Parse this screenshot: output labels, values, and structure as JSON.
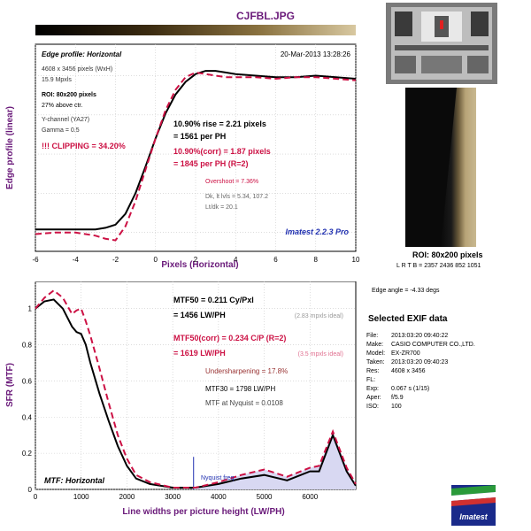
{
  "window": {
    "title": "CJFBL.JPG"
  },
  "top_panel": {
    "header_left": "Edge profile: Horizontal",
    "header_right": "20-Mar-2013 13:28:26",
    "info": [
      "4608 x 3456 pixels (WxH)",
      "15.9 Mpxls"
    ],
    "roi_line": "ROI: 80x200 pixels",
    "roi_pos": "27% above ctr.",
    "channel": "Y-channel (YA27)",
    "gamma": "Gamma = 0.5",
    "clipping": "!!! CLIPPING =  34.20%",
    "rise_line1": "10.90% rise = 2.21 pixels",
    "rise_line2": "= 1561 per PH",
    "corr_line1": "10.90%(corr) = 1.87 pixels",
    "corr_line2": "= 1845 per PH  (R=2)",
    "overshoot": "Overshoot = 7.36%",
    "dk_lvls": "Dk, lt lvls = 5.34, 107.2",
    "lt_dk": "Lt/dk = 20.1",
    "brand": "Imatest 2.2.3 Pro"
  },
  "bottom_panel": {
    "mtf50_line1": "MTF50 = 0.211 Cy/Pxl",
    "mtf50_line2": "= 1456 LW/PH",
    "ideal1": "(2.83 mpxls ideal)",
    "corr_line1": "MTF50(corr) = 0.234 C/P  (R=2)",
    "corr_line2": "= 1619 LW/PH",
    "ideal2": "(3.5 mpxls ideal)",
    "undersharpening": "Undersharpening = 17.8%",
    "mtf30": "MTF30 = 1798 LW/PH",
    "nyquist_mtf": "MTF at Nyquist = 0.0108",
    "nyquist_label": "Nyquist freq.",
    "label_left": "MTF: Horizontal"
  },
  "side": {
    "roi_label": "ROI: 80x200 pixels",
    "lrtb": "L R  T B = 2357 2436  852 1051",
    "edge_angle": "Edge angle = -4.33 degs",
    "exif_title": "Selected EXIF data",
    "exif": [
      {
        "k": "File:",
        "v": "2013:03:20 09:40:22"
      },
      {
        "k": "Make:",
        "v": "CASIO COMPUTER CO.,LTD."
      },
      {
        "k": "Model:",
        "v": "EX-ZR700"
      },
      {
        "k": "Taken:",
        "v": "2013:03:20 09:40:23"
      },
      {
        "k": "Res:",
        "v": "4608 x 3456"
      },
      {
        "k": "FL:",
        "v": ""
      },
      {
        "k": "Exp:",
        "v": "0.067 s  (1/15)"
      },
      {
        "k": "Aper:",
        "v": "f/5.9"
      },
      {
        "k": "ISO:",
        "v": "100"
      }
    ],
    "logo": "Imatest"
  },
  "colors": {
    "accent": "#cc1144",
    "title": "#6a1a7a",
    "blue": "#2030b0"
  },
  "chart_data": [
    {
      "type": "line",
      "title": "Edge profile: Horizontal",
      "xlabel": "Pixels (Horizontal)",
      "ylabel": "Edge profile (linear)",
      "xlim": [
        -6,
        10
      ],
      "xticks": [
        -6,
        -4,
        -2,
        0,
        2,
        4,
        6,
        8,
        10
      ],
      "grid": true,
      "series": [
        {
          "x": [
            -6,
            -5,
            -4,
            -3,
            -2.5,
            -2,
            -1.5,
            -1,
            -0.5,
            0,
            0.5,
            1,
            1.5,
            2,
            2.5,
            3,
            3.5,
            4,
            5,
            6,
            7,
            8,
            9,
            10
          ],
          "y": [
            0.02,
            0.02,
            0.02,
            0.02,
            0.03,
            0.05,
            0.12,
            0.25,
            0.42,
            0.6,
            0.76,
            0.88,
            0.96,
            1.01,
            1.03,
            1.03,
            1.02,
            1.01,
            1.0,
            0.99,
            0.99,
            1.0,
            0.99,
            0.98
          ]
        },
        {
          "x": [
            -6,
            -5,
            -4,
            -3,
            -2.5,
            -2,
            -1.5,
            -1,
            -0.5,
            0,
            0.5,
            1,
            1.5,
            2,
            2.5,
            3,
            3.5,
            4,
            5,
            6,
            7,
            8,
            9,
            10
          ],
          "y": [
            -0.01,
            0.0,
            0.0,
            -0.02,
            -0.04,
            -0.05,
            0.04,
            0.2,
            0.4,
            0.6,
            0.78,
            0.91,
            0.99,
            1.02,
            1.01,
            1.0,
            0.99,
            0.99,
            0.99,
            0.98,
            0.99,
            0.99,
            0.98,
            0.97
          ]
        }
      ]
    },
    {
      "type": "area",
      "title": "MTF: Horizontal",
      "xlabel": "Line widths per picture height (LW/PH)",
      "ylabel": "SFR (MTF)",
      "xlim": [
        0,
        7000
      ],
      "ylim": [
        0,
        1.15
      ],
      "xticks": [
        0,
        1000,
        2000,
        3000,
        4000,
        5000,
        6000
      ],
      "yticks": [
        0,
        0.2,
        0.4,
        0.6,
        0.8,
        1
      ],
      "nyquist": 3456,
      "grid": true,
      "series": [
        {
          "x": [
            0,
            200,
            400,
            600,
            800,
            900,
            1000,
            1100,
            1200,
            1400,
            1600,
            1800,
            2000,
            2200,
            2500,
            3000,
            3500,
            4000,
            4500,
            5000,
            5500,
            6000,
            6200,
            6500,
            6800,
            7000
          ],
          "y": [
            1.0,
            1.04,
            1.05,
            1.0,
            0.9,
            0.87,
            0.86,
            0.8,
            0.7,
            0.53,
            0.38,
            0.24,
            0.13,
            0.06,
            0.03,
            0.01,
            0.01,
            0.03,
            0.06,
            0.08,
            0.05,
            0.1,
            0.1,
            0.3,
            0.1,
            0.02
          ]
        },
        {
          "x": [
            0,
            200,
            400,
            600,
            800,
            900,
            1000,
            1100,
            1200,
            1400,
            1600,
            1800,
            2000,
            2200,
            2500,
            3000,
            3500,
            4000,
            4500,
            5000,
            5500,
            6000,
            6200,
            6500,
            6800,
            7000
          ],
          "y": [
            1.0,
            1.06,
            1.1,
            1.06,
            0.97,
            0.99,
            1.0,
            0.93,
            0.85,
            0.67,
            0.48,
            0.3,
            0.17,
            0.08,
            0.04,
            0.01,
            0.01,
            0.04,
            0.08,
            0.11,
            0.07,
            0.12,
            0.13,
            0.32,
            0.12,
            0.03
          ]
        }
      ]
    }
  ]
}
